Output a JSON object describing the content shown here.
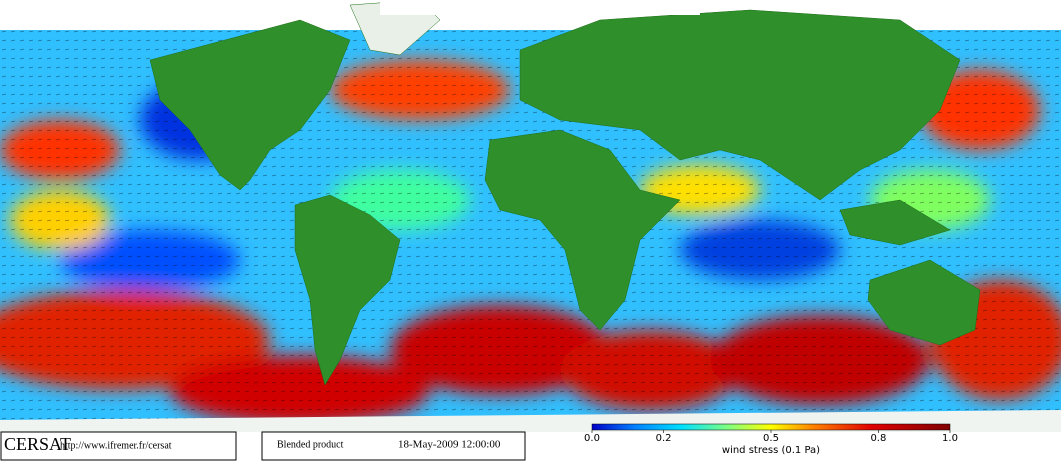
{
  "footer": {
    "logo": "CERSAT",
    "url": "http://www.ifremer.fr/cersat",
    "product": "Blended product",
    "date": "18-May-2009 12:00:00"
  },
  "colorbar": {
    "label": "wind stress (0.1 Pa)",
    "lim": [
      0,
      1
    ],
    "ticks": [
      {
        "value": 0,
        "label": "0.0"
      },
      0.2,
      0.5,
      0.8,
      {
        "value": 1,
        "label": "1.0"
      }
    ]
  }
}
